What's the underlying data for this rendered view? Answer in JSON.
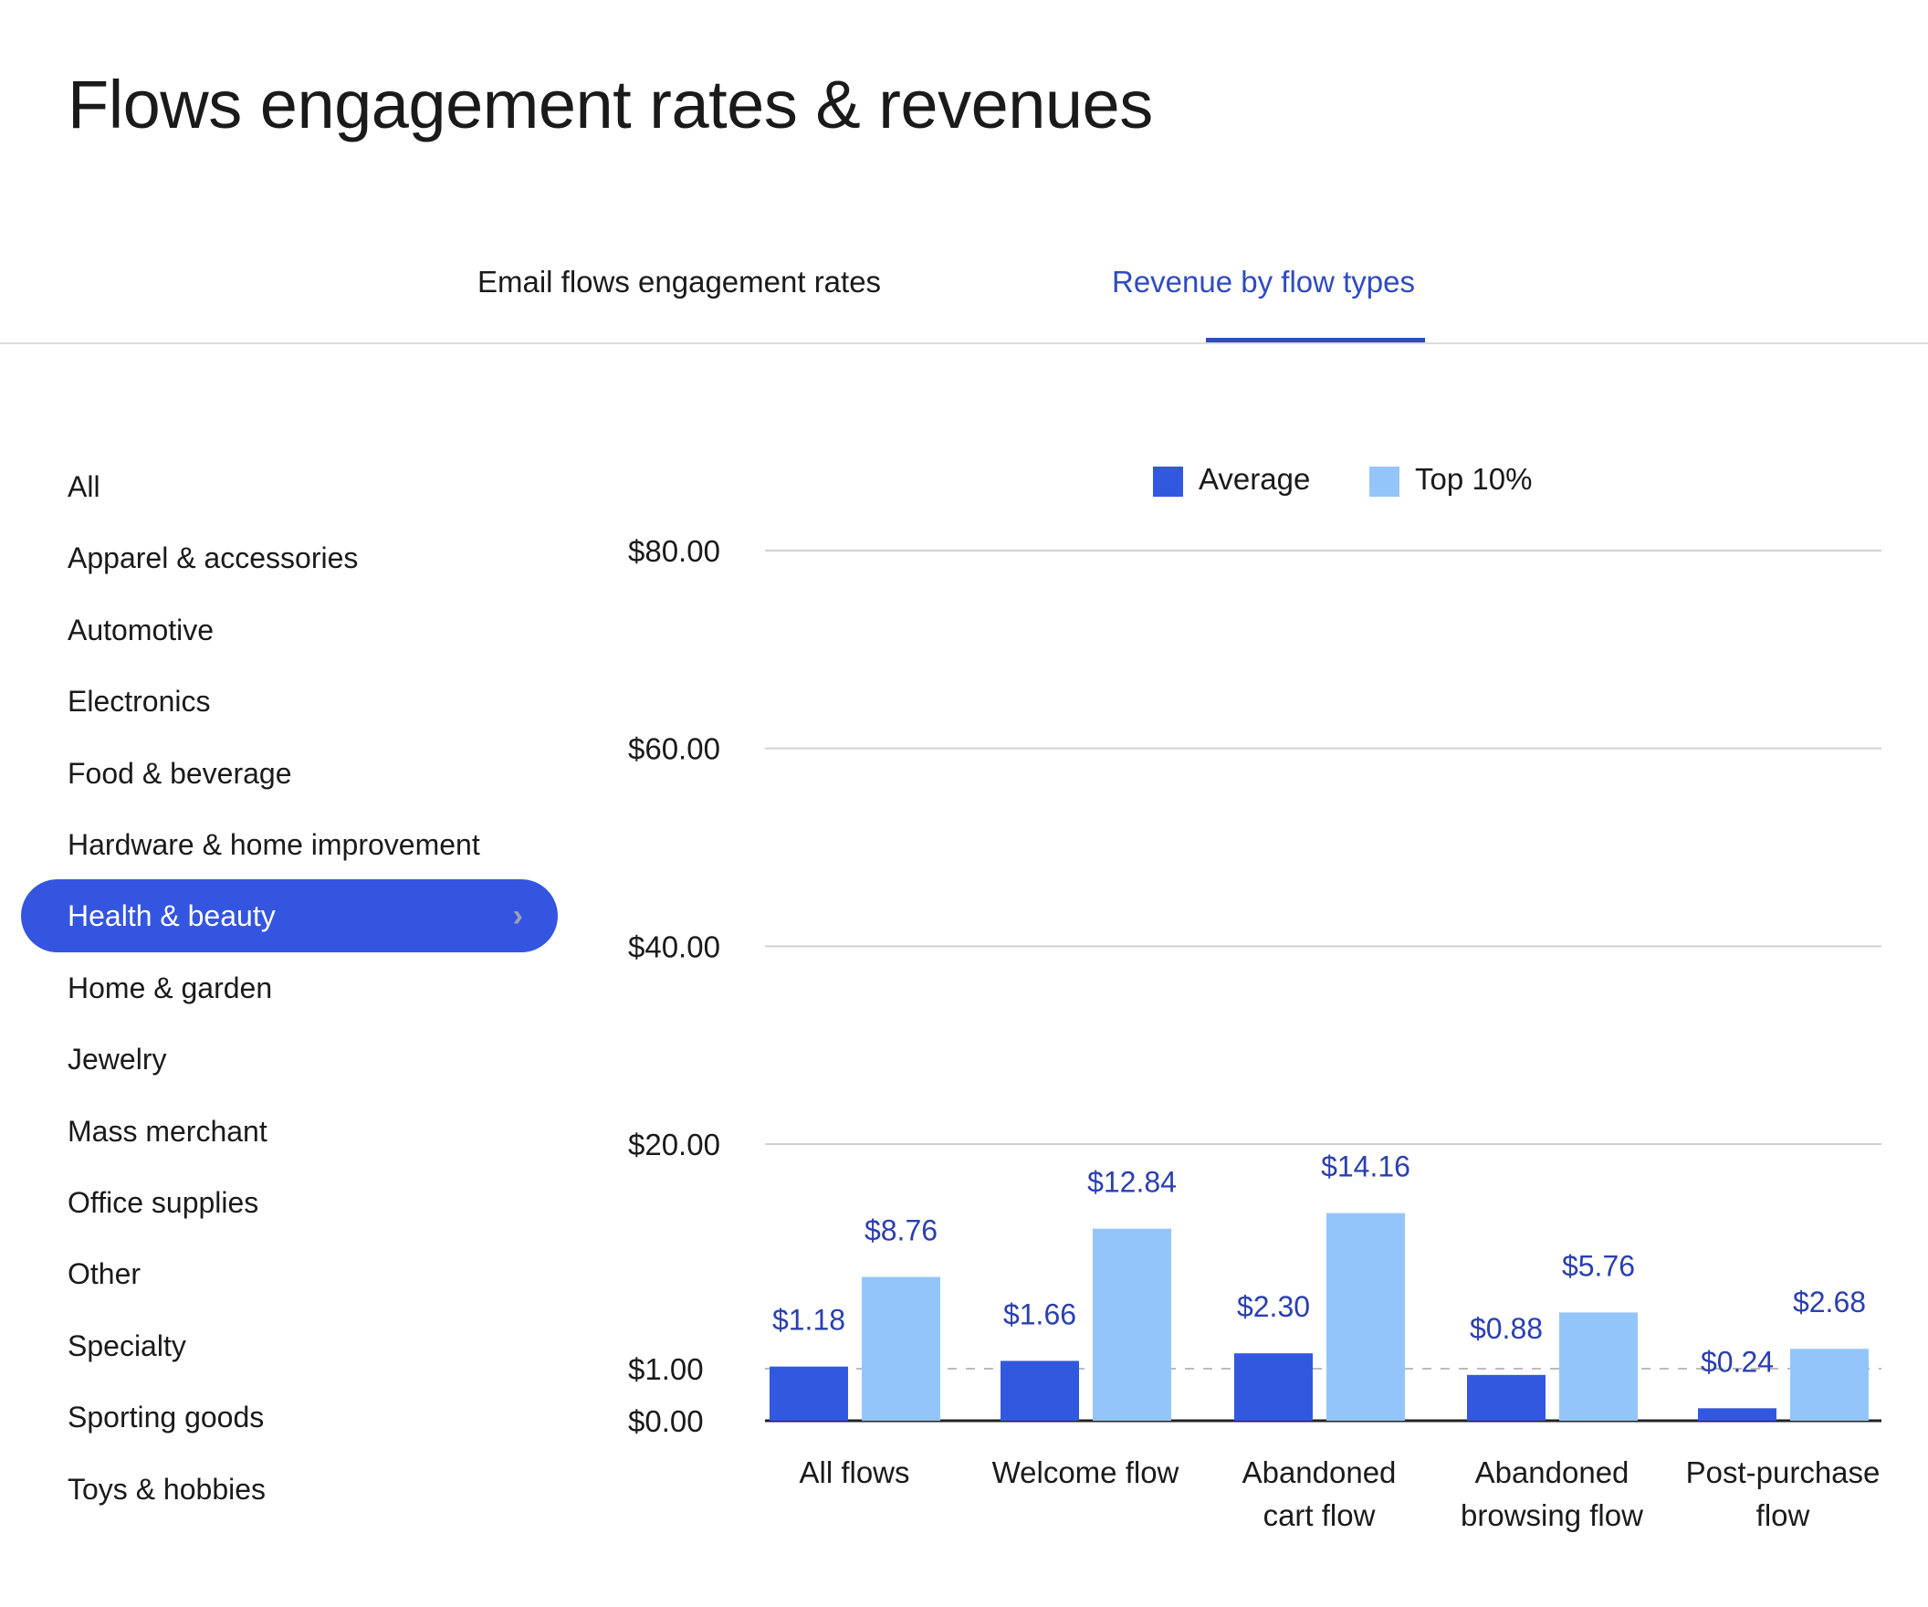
{
  "title": "Flows engagement rates & revenues",
  "tabs": [
    {
      "label": "Email flows engagement rates",
      "active": false
    },
    {
      "label": "Revenue by flow types",
      "active": true
    }
  ],
  "sidebar": {
    "items": [
      {
        "label": "All"
      },
      {
        "label": "Apparel & accessories"
      },
      {
        "label": "Automotive"
      },
      {
        "label": "Electronics"
      },
      {
        "label": "Food & beverage"
      },
      {
        "label": "Hardware & home improvement"
      },
      {
        "label": "Health & beauty",
        "selected": true
      },
      {
        "label": "Home & garden"
      },
      {
        "label": "Jewelry"
      },
      {
        "label": "Mass merchant"
      },
      {
        "label": "Office supplies"
      },
      {
        "label": "Other"
      },
      {
        "label": "Specialty"
      },
      {
        "label": "Sporting goods"
      },
      {
        "label": "Toys & hobbies"
      }
    ],
    "selected_icon": "chevron-right-icon"
  },
  "colors": {
    "average": "#3358e0",
    "top10": "#93c5fb",
    "accent": "#2f4bbf",
    "data_label": "#2a3fb0"
  },
  "chart_data": {
    "type": "bar",
    "categories": [
      [
        "All flows"
      ],
      [
        "Welcome flow"
      ],
      [
        "Abandoned",
        "cart flow"
      ],
      [
        "Abandoned",
        "browsing flow"
      ],
      [
        "Post-purchase",
        "flow"
      ]
    ],
    "series": [
      {
        "name": "Average",
        "values": [
          1.18,
          1.66,
          2.3,
          0.88,
          0.24
        ],
        "labels": [
          "$1.18",
          "$1.66",
          "$2.30",
          "$0.88",
          "$0.24"
        ]
      },
      {
        "name": "Top 10%",
        "values": [
          8.76,
          12.84,
          14.16,
          5.76,
          2.68
        ],
        "labels": [
          "$8.76",
          "$12.84",
          "$14.16",
          "$5.76",
          "$2.68"
        ]
      }
    ],
    "yticks": [
      0,
      1,
      20,
      40,
      60,
      80
    ],
    "ytick_labels": [
      "$0.00",
      "$1.00",
      "$20.00",
      "$40.00",
      "$60.00",
      "$80.00"
    ],
    "ylim": [
      0,
      80
    ],
    "y_scale": "piecewise (0–1 expanded, 1–80 compressed)",
    "reference_line": 1,
    "grid": true,
    "legend": "top-center"
  }
}
